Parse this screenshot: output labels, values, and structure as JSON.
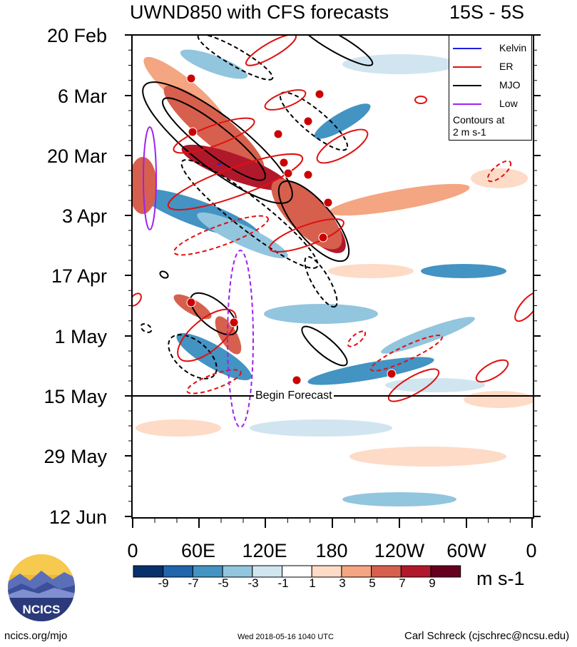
{
  "header": {
    "title": "UWND850 with CFS forecasts",
    "lat_band": "15S - 5S"
  },
  "y_axis": {
    "labels": [
      "20 Feb",
      "6 Mar",
      "20 Mar",
      "3 Apr",
      "17 Apr",
      "1 May",
      "15 May",
      "29 May",
      "12 Jun"
    ]
  },
  "x_axis": {
    "labels": [
      "0",
      "60E",
      "120E",
      "180",
      "120W",
      "60W",
      "0"
    ]
  },
  "legend": {
    "items": [
      {
        "label": "Kelvin",
        "color": "#2020e0"
      },
      {
        "label": "ER",
        "color": "#e01010"
      },
      {
        "label": "MJO",
        "color": "#000000"
      },
      {
        "label": "Low",
        "color": "#a020f0"
      }
    ],
    "note_line1": "Contours at",
    "note_line2": "2 m s-1"
  },
  "forecast_marker": {
    "label": "Begin Forecast",
    "date": "15 May"
  },
  "colorbar": {
    "labels": [
      "-9",
      "-7",
      "-5",
      "-3",
      "-1",
      "1",
      "3",
      "5",
      "7",
      "9"
    ],
    "colors": [
      "#08306b",
      "#2166ac",
      "#4393c3",
      "#92c5de",
      "#d1e5f0",
      "#ffffff",
      "#fddbc7",
      "#f4a582",
      "#d6604d",
      "#b2182b",
      "#67001f"
    ],
    "units": "m s-1"
  },
  "footer": {
    "site": "ncics.org/mjo",
    "timestamp": "Wed 2018-05-16 1040 UTC",
    "author": "Carl Schreck (cjschrec@ncsu.edu)"
  },
  "logo": {
    "text": "NCICS"
  },
  "chart_data": {
    "type": "heatmap",
    "title": "UWND850 with CFS forecasts",
    "subtitle": "15S - 5S",
    "x": [
      "0",
      "60E",
      "120E",
      "180",
      "120W",
      "60W",
      "0"
    ],
    "y": [
      "20 Feb",
      "6 Mar",
      "20 Mar",
      "3 Apr",
      "17 Apr",
      "1 May",
      "15 May",
      "29 May",
      "12 Jun"
    ],
    "colorbar_levels": [
      -9,
      -7,
      -5,
      -3,
      -1,
      1,
      3,
      5,
      7,
      9
    ],
    "series": [
      {
        "name": "Kelvin"
      },
      {
        "name": "ER"
      },
      {
        "name": "MJO"
      },
      {
        "name": "Low"
      }
    ]
  }
}
